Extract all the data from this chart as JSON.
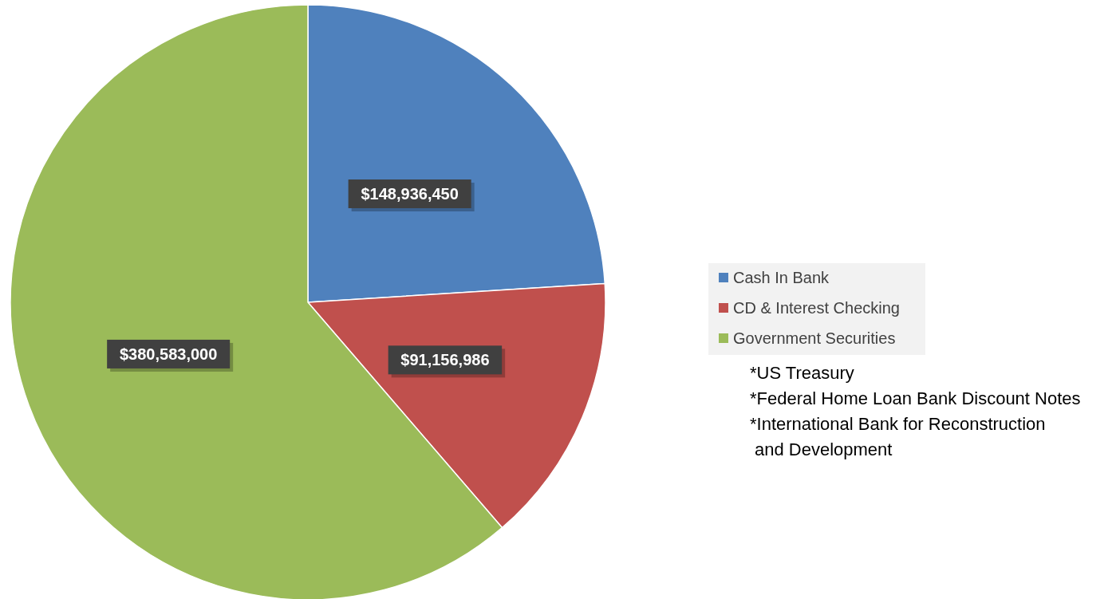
{
  "chart_data": {
    "type": "pie",
    "categories": [
      "Cash In Bank",
      "CD & Interest Checking",
      "Government Securities"
    ],
    "values": [
      148936450,
      91156986,
      380583000
    ],
    "colors": [
      "#4f81bd",
      "#c0504d",
      "#9bbb59"
    ],
    "value_labels": [
      "$148,936,450",
      "$91,156,986",
      "$380,583,000"
    ],
    "legend": "right",
    "annotations": [
      "*US Treasury",
      "*Federal Home Loan Bank Discount Notes",
      "*International Bank for Reconstruction and Development"
    ]
  }
}
